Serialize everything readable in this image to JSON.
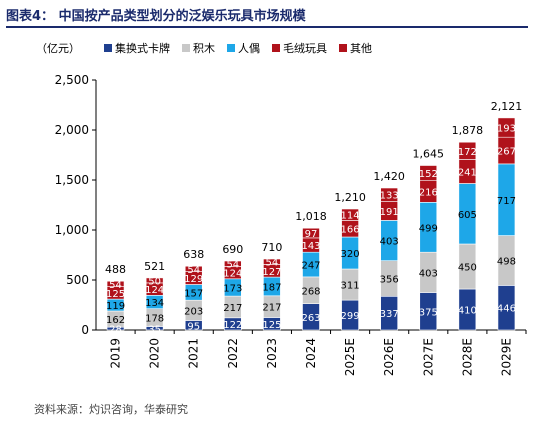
{
  "header": {
    "title": "图表4：  中国按产品类型划分的泛娱乐玩具市场规模",
    "source": "资料来源：灼识咨询，华泰研究"
  },
  "chart_data": {
    "type": "bar",
    "stacked": true,
    "unit_label": "（亿元）",
    "categories": [
      "2019",
      "2020",
      "2021",
      "2022",
      "2023",
      "2024",
      "2025E",
      "2026E",
      "2027E",
      "2028E",
      "2029E"
    ],
    "series": [
      {
        "name": "集换式卡牌",
        "color": "#1f3f8f",
        "label_color": "#ffffff",
        "values": [
          28,
          35,
          95,
          122,
          125,
          263,
          299,
          337,
          375,
          410,
          446
        ]
      },
      {
        "name": "积木",
        "color": "#c8c8c8",
        "label_color": "#000000",
        "values": [
          162,
          178,
          203,
          217,
          217,
          268,
          311,
          356,
          403,
          450,
          498
        ]
      },
      {
        "name": "人偶",
        "color": "#1ea7e8",
        "label_color": "#000000",
        "values": [
          119,
          134,
          157,
          173,
          187,
          247,
          320,
          403,
          499,
          605,
          717
        ]
      },
      {
        "name": "毛绒玩具",
        "color": "#b0121b",
        "label_color": "#ffffff",
        "values": [
          125,
          124,
          129,
          124,
          127,
          143,
          166,
          191,
          216,
          241,
          267
        ]
      },
      {
        "name": "其他",
        "color": "#b0121b",
        "label_color": "#ffffff",
        "values": [
          54,
          50,
          54,
          54,
          54,
          97,
          114,
          133,
          152,
          172,
          193
        ]
      }
    ],
    "totals": [
      488,
      521,
      638,
      690,
      710,
      1018,
      1210,
      1420,
      1645,
      1878,
      2121
    ],
    "ylim": [
      0,
      2500
    ],
    "yticks": [
      "0",
      "500",
      "1,000",
      "1,500",
      "2,000",
      "2,500"
    ],
    "total_labels": [
      "488",
      "521",
      "638",
      "690",
      "710",
      "1,018",
      "1,210",
      "1,420",
      "1,645",
      "1,878",
      "2,121"
    ],
    "legend_position": "top",
    "grid": false
  }
}
